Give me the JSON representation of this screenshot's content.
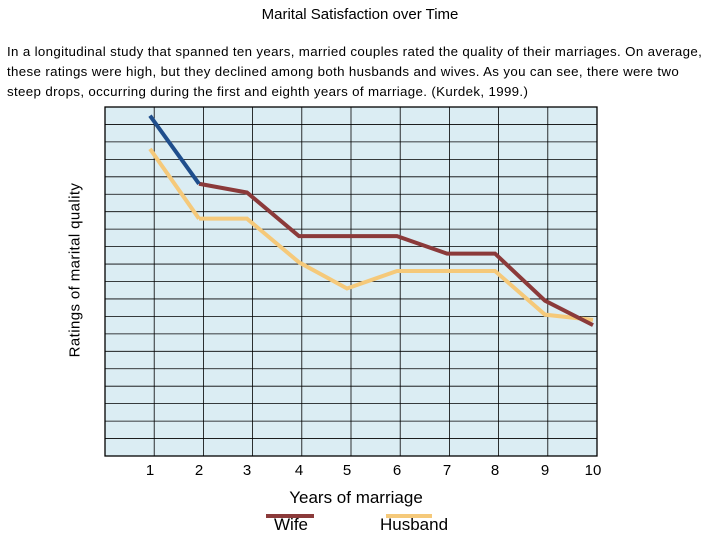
{
  "page": {
    "title": "Marital Satisfaction over Time",
    "description": "In a longitudinal study that spanned ten years, married couples rated the quality of their marriages. On average, these ratings were high, but they declined among both husbands and wives. As you can see, there were two steep drops, occurring during the first and eighth years of marriage. (Kurdek, 1999.)"
  },
  "chart_data": {
    "type": "line",
    "title": "Marital Satisfaction over Time",
    "xlabel": "Years of marriage",
    "ylabel": "Ratings of marital quality",
    "categories": [
      "1",
      "2",
      "3",
      "4",
      "5",
      "6",
      "7",
      "8",
      "9",
      "10"
    ],
    "ylim": [
      0,
      20
    ],
    "grid": true,
    "legend_position": "bottom-center",
    "colors": {
      "plot_background": "#dbedf3",
      "grid": "#000000",
      "first_year_segment": "#1f4e8c"
    },
    "series": [
      {
        "name": "Wife",
        "color": "#8b3a3a",
        "values": [
          19.5,
          15.6,
          15.1,
          12.6,
          12.6,
          12.6,
          11.6,
          11.6,
          8.9,
          7.5
        ]
      },
      {
        "name": "Husband",
        "color": "#f5c97a",
        "values": [
          17.6,
          13.6,
          13.6,
          11.1,
          9.6,
          10.6,
          10.6,
          10.6,
          8.1,
          7.8
        ]
      }
    ]
  }
}
